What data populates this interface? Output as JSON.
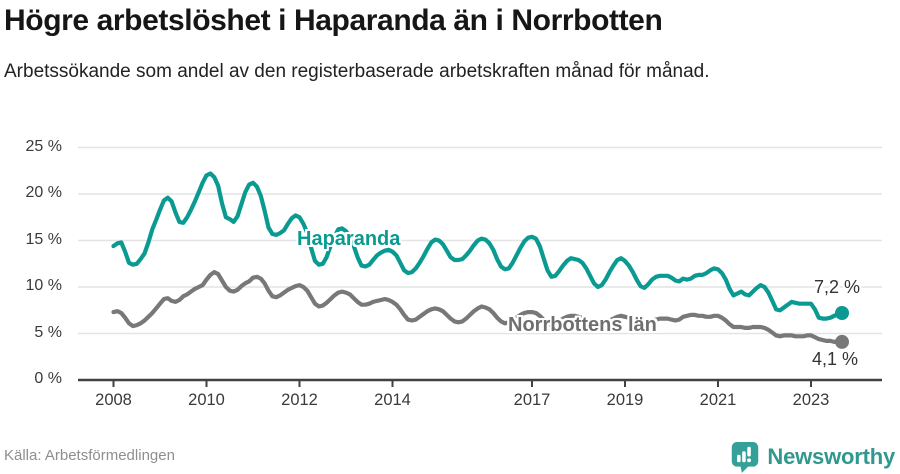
{
  "header": {
    "title": "Högre arbetslöshet i Haparanda än i Norrbotten",
    "subtitle": "Arbetssökande som andel av den registerbaserade arbetskraften månad för månad."
  },
  "footer": {
    "source": "Källa: Arbetsförmedlingen",
    "brand": "Newsworthy"
  },
  "colors": {
    "haparanda_line": "#0a9a92",
    "norrbotten_line": "#787878",
    "gridline": "#e4e4e4",
    "axis": "#414141",
    "tick_text": "#3a3a3a",
    "brand_teal": "#35a098"
  },
  "chart_data": {
    "type": "line",
    "frequency": "monthly",
    "x_start": "2008-01",
    "x_end": "2023-09",
    "ylim": [
      0,
      25
    ],
    "grid": "horizontal",
    "legend_position": "inline-labels",
    "y_ticks": [
      {
        "value": 0,
        "label": "0 %"
      },
      {
        "value": 5,
        "label": "5 %"
      },
      {
        "value": 10,
        "label": "10 %"
      },
      {
        "value": 15,
        "label": "15 %"
      },
      {
        "value": 20,
        "label": "20 %"
      },
      {
        "value": 25,
        "label": "25 %"
      }
    ],
    "x_ticks": [
      {
        "year": 2008,
        "label": "2008"
      },
      {
        "year": 2010,
        "label": "2010"
      },
      {
        "year": 2012,
        "label": "2012"
      },
      {
        "year": 2014,
        "label": "2014"
      },
      {
        "year": 2017,
        "label": "2017"
      },
      {
        "year": 2019,
        "label": "2019"
      },
      {
        "year": 2021,
        "label": "2021"
      },
      {
        "year": 2023,
        "label": "2023"
      }
    ],
    "series": [
      {
        "name": "Haparanda",
        "color": "#0a9a92",
        "end_label": "7,2 %",
        "end_value": 7.2,
        "values": [
          14.4,
          14.7,
          14.8,
          13.8,
          12.6,
          12.4,
          12.5,
          13.0,
          13.6,
          14.8,
          16.2,
          17.2,
          18.3,
          19.3,
          19.6,
          19.2,
          18.0,
          17.0,
          16.9,
          17.5,
          18.3,
          19.2,
          20.2,
          21.2,
          22.0,
          22.2,
          21.8,
          20.9,
          19.0,
          17.5,
          17.3,
          17.0,
          17.6,
          18.9,
          20.2,
          21.0,
          21.2,
          20.8,
          19.8,
          18.2,
          16.4,
          15.7,
          15.6,
          15.8,
          16.1,
          16.8,
          17.4,
          17.7,
          17.5,
          16.8,
          15.8,
          14.2,
          12.8,
          12.4,
          12.5,
          13.2,
          14.4,
          15.4,
          16.2,
          16.3,
          16.0,
          15.4,
          14.4,
          13.2,
          12.3,
          12.2,
          12.4,
          12.9,
          13.4,
          13.7,
          13.9,
          14.0,
          13.8,
          13.4,
          12.6,
          11.8,
          11.5,
          11.6,
          12.0,
          12.6,
          13.3,
          14.1,
          14.8,
          15.1,
          15.0,
          14.6,
          13.9,
          13.2,
          12.9,
          12.9,
          13.0,
          13.4,
          13.9,
          14.5,
          15.0,
          15.2,
          15.1,
          14.7,
          14.0,
          13.0,
          12.2,
          11.9,
          12.0,
          12.6,
          13.4,
          14.2,
          14.9,
          15.3,
          15.4,
          15.2,
          14.4,
          13.1,
          11.8,
          11.1,
          11.2,
          11.7,
          12.3,
          12.8,
          13.1,
          13.0,
          12.9,
          12.6,
          12.0,
          11.2,
          10.4,
          10.0,
          10.2,
          10.8,
          11.6,
          12.3,
          12.9,
          13.1,
          12.8,
          12.3,
          11.6,
          10.8,
          10.1,
          9.9,
          10.3,
          10.8,
          11.1,
          11.2,
          11.2,
          11.2,
          11.0,
          10.7,
          10.6,
          10.9,
          10.8,
          10.9,
          11.2,
          11.3,
          11.3,
          11.5,
          11.8,
          12.0,
          11.9,
          11.5,
          10.8,
          9.8,
          9.1,
          9.3,
          9.5,
          9.2,
          9.1,
          9.5,
          9.9,
          10.2,
          10.0,
          9.4,
          8.5,
          7.6,
          7.5,
          7.8,
          8.1,
          8.4,
          8.3,
          8.2,
          8.2,
          8.2,
          8.2,
          7.6,
          6.7,
          6.6,
          6.6,
          6.7,
          6.9,
          7.1,
          7.2
        ]
      },
      {
        "name": "Norrbottens län",
        "color": "#787878",
        "end_label": "4,1 %",
        "end_value": 4.1,
        "values": [
          7.3,
          7.4,
          7.2,
          6.7,
          6.1,
          5.8,
          5.9,
          6.1,
          6.4,
          6.8,
          7.2,
          7.7,
          8.2,
          8.7,
          8.8,
          8.5,
          8.4,
          8.6,
          9.0,
          9.2,
          9.5,
          9.8,
          10.0,
          10.2,
          10.8,
          11.3,
          11.6,
          11.4,
          10.7,
          10.0,
          9.6,
          9.5,
          9.7,
          10.1,
          10.4,
          10.6,
          11.0,
          11.1,
          10.9,
          10.4,
          9.6,
          9.0,
          8.9,
          9.1,
          9.4,
          9.7,
          9.9,
          10.1,
          10.2,
          10.0,
          9.6,
          8.9,
          8.2,
          7.9,
          8.0,
          8.3,
          8.7,
          9.1,
          9.4,
          9.5,
          9.4,
          9.2,
          8.8,
          8.4,
          8.1,
          8.1,
          8.2,
          8.4,
          8.5,
          8.6,
          8.7,
          8.6,
          8.4,
          8.1,
          7.6,
          7.0,
          6.5,
          6.4,
          6.5,
          6.8,
          7.1,
          7.4,
          7.6,
          7.7,
          7.6,
          7.4,
          7.0,
          6.6,
          6.3,
          6.2,
          6.3,
          6.6,
          7.0,
          7.4,
          7.7,
          7.9,
          7.8,
          7.6,
          7.2,
          6.7,
          6.3,
          6.1,
          6.2,
          6.4,
          6.7,
          7.0,
          7.2,
          7.3,
          7.3,
          7.2,
          6.9,
          6.5,
          6.1,
          5.9,
          6.0,
          6.3,
          6.6,
          6.8,
          6.9,
          6.9,
          6.8,
          6.7,
          6.5,
          6.2,
          5.9,
          5.8,
          5.9,
          6.1,
          6.4,
          6.6,
          6.8,
          6.9,
          6.8,
          6.7,
          6.5,
          6.3,
          6.1,
          6.0,
          6.2,
          6.4,
          6.5,
          6.6,
          6.6,
          6.6,
          6.5,
          6.4,
          6.5,
          6.8,
          6.9,
          7.0,
          7.0,
          6.9,
          6.9,
          6.8,
          6.8,
          6.9,
          6.9,
          6.7,
          6.4,
          6.0,
          5.7,
          5.7,
          5.7,
          5.6,
          5.6,
          5.7,
          5.7,
          5.7,
          5.6,
          5.4,
          5.1,
          4.8,
          4.7,
          4.8,
          4.8,
          4.8,
          4.7,
          4.7,
          4.7,
          4.8,
          4.8,
          4.6,
          4.4,
          4.3,
          4.2,
          4.2,
          4.1,
          4.1,
          4.1
        ]
      }
    ]
  }
}
